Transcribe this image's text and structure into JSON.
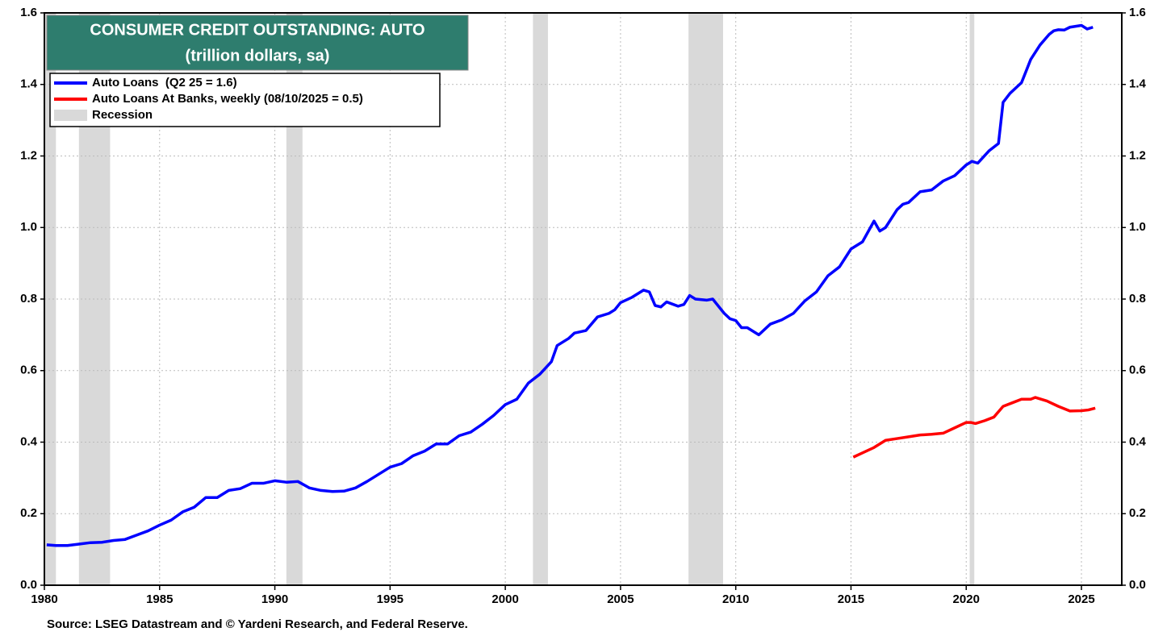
{
  "chart_data": {
    "type": "line",
    "title": "CONSUMER CREDIT OUTSTANDING: AUTO",
    "subtitle": "(trillion dollars, sa)",
    "source": "Source: LSEG Datastream and © Yardeni Research, and Federal Reserve.",
    "xlim": [
      1980,
      2026.75
    ],
    "xticks": [
      1980,
      1985,
      1990,
      1995,
      2000,
      2005,
      2010,
      2015,
      2020,
      2025
    ],
    "ylim": [
      0,
      1.6
    ],
    "yticks": [
      {
        "value": 0,
        "label": "0.0"
      },
      0.2,
      0.4,
      0.6,
      0.8,
      {
        "value": 1,
        "label": "1.0"
      },
      1.2,
      1.4,
      1.6
    ],
    "y2lim": [
      0,
      1.6
    ],
    "y2ticks": [
      {
        "value": 0,
        "label": "0.0"
      },
      0.2,
      0.4,
      0.6,
      0.8,
      {
        "value": 1,
        "label": "1.0"
      },
      1.2,
      1.4,
      1.6
    ],
    "grid": true,
    "legend": "top-left",
    "recession": {
      "name": "Recession",
      "color": "#d9d9d9",
      "periods": [
        [
          1980.0,
          1980.5
        ],
        [
          1981.5,
          1982.85
        ],
        [
          1990.5,
          1991.2
        ],
        [
          2001.2,
          2001.85
        ],
        [
          2007.95,
          2009.45
        ],
        [
          2020.15,
          2020.35
        ]
      ]
    },
    "series": [
      {
        "name": "Auto Loans  (Q2 25 = 1.6)",
        "color": "#0000ff",
        "x": [
          1980.1,
          1980.5,
          1981,
          1981.5,
          1982,
          1982.5,
          1983,
          1983.5,
          1984,
          1984.5,
          1985,
          1985.5,
          1986,
          1986.5,
          1987,
          1987.5,
          1988,
          1988.5,
          1989,
          1989.5,
          1990,
          1990.5,
          1991,
          1991.5,
          1992,
          1992.5,
          1993,
          1993.5,
          1994,
          1994.5,
          1995,
          1995.5,
          1996,
          1996.5,
          1997,
          1997.5,
          1998,
          1998.5,
          1999,
          1999.5,
          2000,
          2000.5,
          2001,
          2001.5,
          2002,
          2002.25,
          2002.75,
          2003,
          2003.5,
          2004,
          2004.5,
          2004.75,
          2005,
          2005.5,
          2006,
          2006.25,
          2006.5,
          2006.75,
          2007,
          2007.5,
          2007.75,
          2008,
          2008.25,
          2008.75,
          2009,
          2009.5,
          2009.75,
          2010,
          2010.25,
          2010.5,
          2011,
          2011.5,
          2012,
          2012.5,
          2013,
          2013.5,
          2014,
          2014.5,
          2015,
          2015.5,
          2016,
          2016.25,
          2016.5,
          2017,
          2017.25,
          2017.5,
          2018,
          2018.5,
          2019,
          2019.5,
          2020,
          2020.25,
          2020.5,
          2021,
          2021.4,
          2021.6,
          2021.9,
          2022.4,
          2022.8,
          2023.2,
          2023.6,
          2023.8,
          2024,
          2024.25,
          2024.5,
          2025,
          2025.25,
          2025.5
        ],
        "values": [
          0.113,
          0.111,
          0.111,
          0.115,
          0.119,
          0.12,
          0.125,
          0.128,
          0.14,
          0.152,
          0.168,
          0.182,
          0.205,
          0.218,
          0.245,
          0.245,
          0.265,
          0.27,
          0.285,
          0.285,
          0.292,
          0.288,
          0.29,
          0.272,
          0.265,
          0.262,
          0.263,
          0.272,
          0.29,
          0.31,
          0.33,
          0.34,
          0.362,
          0.375,
          0.395,
          0.395,
          0.418,
          0.428,
          0.45,
          0.475,
          0.505,
          0.52,
          0.565,
          0.59,
          0.625,
          0.67,
          0.69,
          0.705,
          0.712,
          0.75,
          0.76,
          0.77,
          0.79,
          0.805,
          0.825,
          0.82,
          0.782,
          0.778,
          0.792,
          0.78,
          0.785,
          0.81,
          0.8,
          0.797,
          0.8,
          0.76,
          0.745,
          0.74,
          0.72,
          0.72,
          0.7,
          0.73,
          0.742,
          0.76,
          0.795,
          0.82,
          0.865,
          0.89,
          0.94,
          0.96,
          1.018,
          0.99,
          1.0,
          1.05,
          1.065,
          1.07,
          1.1,
          1.105,
          1.13,
          1.145,
          1.175,
          1.185,
          1.18,
          1.215,
          1.235,
          1.35,
          1.375,
          1.405,
          1.47,
          1.51,
          1.54,
          1.55,
          1.553,
          1.552,
          1.56,
          1.565,
          1.555,
          1.56
        ]
      },
      {
        "name": "Auto Loans At Banks, weekly (08/10/2025 = 0.5)",
        "color": "#ff0000",
        "x": [
          2015.1,
          2015.5,
          2016,
          2016.5,
          2017,
          2017.5,
          2018,
          2018.5,
          2019,
          2019.5,
          2020,
          2020.2,
          2020.4,
          2020.8,
          2021.2,
          2021.6,
          2022,
          2022.4,
          2022.8,
          2023,
          2023.5,
          2024,
          2024.5,
          2025,
          2025.3,
          2025.6
        ],
        "values": [
          0.358,
          0.37,
          0.385,
          0.405,
          0.41,
          0.415,
          0.42,
          0.422,
          0.425,
          0.44,
          0.455,
          0.455,
          0.452,
          0.46,
          0.47,
          0.5,
          0.51,
          0.52,
          0.52,
          0.525,
          0.515,
          0.5,
          0.487,
          0.488,
          0.49,
          0.495
        ]
      }
    ]
  }
}
